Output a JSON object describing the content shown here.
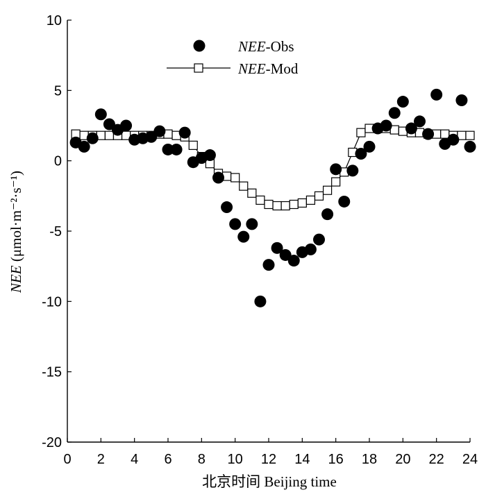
{
  "chart_data": {
    "type": "scatter",
    "xlabel": "北京时间 Beijing time",
    "ylabel_italic": "NEE",
    "ylabel_rest": " (μmol·m⁻²·s⁻¹)",
    "xlim": [
      0,
      24
    ],
    "ylim": [
      -20,
      10
    ],
    "xticks": [
      "0",
      "2",
      "4",
      "6",
      "8",
      "10",
      "12",
      "14",
      "16",
      "18",
      "20",
      "22",
      "24"
    ],
    "yticks": [
      "10",
      "5",
      "0",
      "-5",
      "-10",
      "-15",
      "-20"
    ],
    "grid": false,
    "legend_placement": "top-center",
    "series": [
      {
        "name_italic": "NEE",
        "name_rest": "-Obs",
        "style": "filled-circle",
        "x": [
          0.5,
          1,
          1.5,
          2,
          2.5,
          3,
          3.5,
          4,
          4.5,
          5,
          5.5,
          6,
          6.5,
          7,
          7.5,
          8,
          8.5,
          9,
          9.5,
          10,
          10.5,
          11,
          11.5,
          12,
          12.5,
          13,
          13.5,
          14,
          14.5,
          15,
          15.5,
          16,
          16.5,
          17,
          17.5,
          18,
          18.5,
          19,
          19.5,
          20,
          20.5,
          21,
          21.5,
          22,
          22.5,
          23,
          23.5,
          24
        ],
        "y": [
          1.3,
          1.0,
          1.6,
          3.3,
          2.6,
          2.2,
          2.5,
          1.5,
          1.6,
          1.7,
          2.1,
          0.8,
          0.8,
          2.0,
          -0.1,
          0.2,
          0.4,
          -1.2,
          -3.3,
          -4.5,
          -5.4,
          -4.5,
          -10.0,
          -7.4,
          -6.2,
          -6.7,
          -7.1,
          -6.5,
          -6.3,
          -5.6,
          -3.8,
          -0.6,
          -2.9,
          -0.7,
          0.5,
          1.0,
          2.3,
          2.5,
          3.4,
          4.2,
          2.3,
          2.8,
          1.9,
          4.7,
          1.2,
          1.5,
          4.3,
          1.0
        ]
      },
      {
        "name_italic": "NEE",
        "name_rest": "-Mod",
        "style": "open-square-line",
        "x": [
          0.5,
          1,
          1.5,
          2,
          2.5,
          3,
          3.5,
          4,
          4.5,
          5,
          5.5,
          6,
          6.5,
          7,
          7.5,
          8,
          8.5,
          9,
          9.5,
          10,
          10.5,
          11,
          11.5,
          12,
          12.5,
          13,
          13.5,
          14,
          14.5,
          15,
          15.5,
          16,
          16.5,
          17,
          17.5,
          18,
          18.5,
          19,
          19.5,
          20,
          20.5,
          21,
          21.5,
          22,
          22.5,
          23,
          23.5,
          24
        ],
        "y": [
          1.9,
          1.8,
          1.8,
          1.8,
          1.8,
          1.8,
          1.8,
          1.8,
          1.8,
          1.8,
          1.9,
          1.9,
          1.8,
          1.7,
          1.1,
          0.3,
          -0.2,
          -0.9,
          -1.1,
          -1.2,
          -1.8,
          -2.3,
          -2.8,
          -3.1,
          -3.2,
          -3.2,
          -3.1,
          -3.0,
          -2.8,
          -2.5,
          -2.1,
          -1.5,
          -0.8,
          0.6,
          2.0,
          2.3,
          2.3,
          2.3,
          2.2,
          2.1,
          2.0,
          2.0,
          1.9,
          1.9,
          1.9,
          1.8,
          1.8,
          1.8
        ]
      }
    ]
  }
}
